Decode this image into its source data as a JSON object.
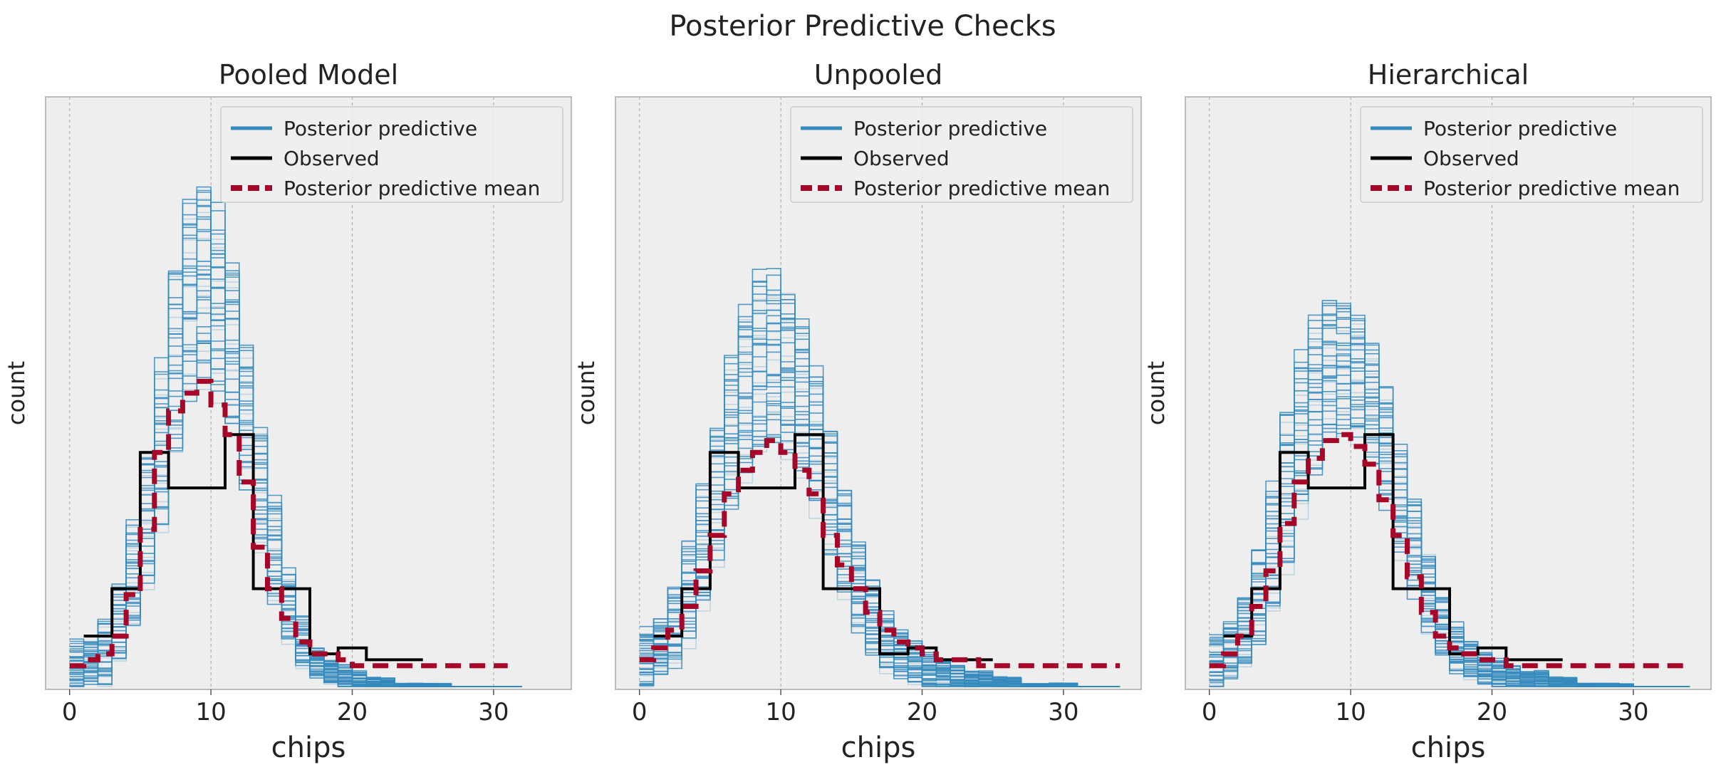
{
  "figure_title": "Posterior Predictive Checks",
  "legend_labels": [
    "Posterior predictive",
    "Observed",
    "Posterior predictive mean"
  ],
  "colors": {
    "posterior_predictive": "#348abd",
    "observed": "#000000",
    "mean": "#a60628",
    "axes_bg": "#eeeeee",
    "grid": "#b0b0b0"
  },
  "chart_data": [
    {
      "type": "step",
      "title": "Pooled Model",
      "xlabel": "chips",
      "ylabel": "count",
      "xticks": [
        0,
        10,
        20,
        30
      ],
      "xlim": [
        -1.7,
        35.5
      ],
      "ylim": [
        0,
        1
      ],
      "grid": "vertical",
      "legend_position": "top-right",
      "series": [
        {
          "name": "Posterior predictive",
          "kind": "band",
          "x": [
            0,
            1,
            2,
            3,
            4,
            5,
            6,
            7,
            8,
            9,
            10,
            11,
            12,
            13,
            14,
            15,
            16,
            17,
            18,
            19,
            20,
            21,
            22,
            23,
            24,
            25,
            26,
            27,
            28,
            29,
            30,
            31
          ],
          "low": [
            0.0,
            0.01,
            0.01,
            0.05,
            0.1,
            0.18,
            0.27,
            0.4,
            0.5,
            0.52,
            0.5,
            0.44,
            0.34,
            0.24,
            0.15,
            0.08,
            0.04,
            0.02,
            0.01,
            0.0,
            0.0,
            0.0,
            0.0,
            0.0,
            0.0,
            0.0,
            0.0,
            0.0,
            0.0,
            0.0,
            0.0,
            0.0
          ],
          "high": [
            0.08,
            0.08,
            0.12,
            0.18,
            0.28,
            0.4,
            0.54,
            0.7,
            0.82,
            0.86,
            0.8,
            0.72,
            0.58,
            0.44,
            0.32,
            0.2,
            0.12,
            0.07,
            0.05,
            0.04,
            0.03,
            0.02,
            0.02,
            0.01,
            0.01,
            0.01,
            0.01,
            0.0,
            0.0,
            0.0,
            0.0,
            0.0
          ]
        },
        {
          "name": "Observed",
          "kind": "step",
          "x": [
            1,
            3,
            5,
            7,
            9,
            11,
            13,
            15,
            17,
            19,
            21,
            23
          ],
          "y": [
            0.09,
            0.17,
            0.4,
            0.34,
            0.34,
            0.43,
            0.17,
            0.17,
            0.06,
            0.07,
            0.05,
            0.05
          ]
        },
        {
          "name": "Posterior predictive mean",
          "kind": "step",
          "x": [
            0,
            1,
            2,
            3,
            4,
            5,
            6,
            7,
            8,
            9,
            10,
            11,
            12,
            13,
            14,
            15,
            16,
            17,
            18,
            19,
            20,
            21,
            22,
            23,
            24,
            25,
            26,
            27,
            28,
            29,
            30
          ],
          "y": [
            0.04,
            0.05,
            0.06,
            0.09,
            0.16,
            0.27,
            0.4,
            0.47,
            0.5,
            0.52,
            0.48,
            0.43,
            0.35,
            0.24,
            0.17,
            0.12,
            0.08,
            0.06,
            0.06,
            0.05,
            0.04,
            0.04,
            0.04,
            0.04,
            0.04,
            0.04,
            0.04,
            0.04,
            0.04,
            0.04,
            0.04
          ]
        }
      ]
    },
    {
      "type": "step",
      "title": "Unpooled",
      "xlabel": "chips",
      "ylabel": "count",
      "xticks": [
        0,
        10,
        20,
        30
      ],
      "xlim": [
        -1.7,
        35.5
      ],
      "ylim": [
        0,
        1
      ],
      "grid": "vertical",
      "legend_position": "top-right",
      "series": [
        {
          "name": "Posterior predictive",
          "kind": "band",
          "x": [
            0,
            1,
            2,
            3,
            4,
            5,
            6,
            7,
            8,
            9,
            10,
            11,
            12,
            13,
            14,
            15,
            16,
            17,
            18,
            19,
            20,
            21,
            22,
            23,
            24,
            25,
            26,
            27,
            28,
            29,
            30,
            31,
            32,
            33
          ],
          "low": [
            0.0,
            0.02,
            0.04,
            0.08,
            0.14,
            0.22,
            0.3,
            0.36,
            0.4,
            0.42,
            0.4,
            0.36,
            0.3,
            0.23,
            0.16,
            0.1,
            0.06,
            0.03,
            0.02,
            0.01,
            0.0,
            0.0,
            0.0,
            0.0,
            0.0,
            0.0,
            0.0,
            0.0,
            0.0,
            0.0,
            0.0,
            0.0,
            0.0,
            0.0
          ],
          "high": [
            0.1,
            0.12,
            0.17,
            0.25,
            0.34,
            0.45,
            0.56,
            0.64,
            0.7,
            0.7,
            0.68,
            0.62,
            0.54,
            0.44,
            0.34,
            0.25,
            0.18,
            0.13,
            0.1,
            0.08,
            0.06,
            0.05,
            0.04,
            0.03,
            0.03,
            0.02,
            0.02,
            0.01,
            0.01,
            0.01,
            0.01,
            0.0,
            0.0,
            0.0
          ]
        },
        {
          "name": "Observed",
          "kind": "step",
          "x": [
            1,
            3,
            5,
            7,
            9,
            11,
            13,
            15,
            17,
            19,
            21,
            23
          ],
          "y": [
            0.09,
            0.17,
            0.4,
            0.34,
            0.34,
            0.43,
            0.17,
            0.17,
            0.06,
            0.07,
            0.05,
            0.05
          ]
        },
        {
          "name": "Posterior predictive mean",
          "kind": "step",
          "x": [
            0,
            1,
            2,
            3,
            4,
            5,
            6,
            7,
            8,
            9,
            10,
            11,
            12,
            13,
            14,
            15,
            16,
            17,
            18,
            19,
            20,
            21,
            22,
            23,
            24,
            25,
            26,
            27,
            28,
            29,
            30,
            31,
            32,
            33
          ],
          "y": [
            0.05,
            0.07,
            0.1,
            0.14,
            0.2,
            0.26,
            0.33,
            0.37,
            0.4,
            0.42,
            0.4,
            0.37,
            0.33,
            0.26,
            0.21,
            0.17,
            0.13,
            0.1,
            0.08,
            0.07,
            0.06,
            0.05,
            0.05,
            0.05,
            0.04,
            0.04,
            0.04,
            0.04,
            0.04,
            0.04,
            0.04,
            0.04,
            0.04,
            0.04
          ]
        }
      ]
    },
    {
      "type": "step",
      "title": "Hierarchical",
      "xlabel": "chips",
      "ylabel": "count",
      "xticks": [
        0,
        10,
        20,
        30
      ],
      "xlim": [
        -1.7,
        35.5
      ],
      "ylim": [
        0,
        1
      ],
      "grid": "vertical",
      "legend_position": "top-right",
      "series": [
        {
          "name": "Posterior predictive",
          "kind": "band",
          "x": [
            0,
            1,
            2,
            3,
            4,
            5,
            6,
            7,
            8,
            9,
            10,
            11,
            12,
            13,
            14,
            15,
            16,
            17,
            18,
            19,
            20,
            21,
            22,
            23,
            24,
            25,
            26,
            27,
            28,
            29,
            30,
            31,
            32,
            33
          ],
          "low": [
            0.0,
            0.02,
            0.04,
            0.07,
            0.13,
            0.21,
            0.3,
            0.37,
            0.42,
            0.44,
            0.42,
            0.38,
            0.31,
            0.23,
            0.16,
            0.1,
            0.06,
            0.03,
            0.02,
            0.01,
            0.0,
            0.0,
            0.0,
            0.0,
            0.0,
            0.0,
            0.0,
            0.0,
            0.0,
            0.0,
            0.0,
            0.0,
            0.0,
            0.0
          ],
          "high": [
            0.09,
            0.11,
            0.16,
            0.24,
            0.34,
            0.46,
            0.56,
            0.62,
            0.66,
            0.66,
            0.64,
            0.58,
            0.5,
            0.41,
            0.32,
            0.23,
            0.16,
            0.11,
            0.08,
            0.06,
            0.05,
            0.04,
            0.03,
            0.03,
            0.02,
            0.02,
            0.01,
            0.01,
            0.01,
            0.01,
            0.0,
            0.0,
            0.0,
            0.0
          ]
        },
        {
          "name": "Observed",
          "kind": "step",
          "x": [
            1,
            3,
            5,
            7,
            9,
            11,
            13,
            15,
            17,
            19,
            21,
            23
          ],
          "y": [
            0.09,
            0.17,
            0.4,
            0.34,
            0.34,
            0.43,
            0.17,
            0.17,
            0.06,
            0.07,
            0.05,
            0.05
          ]
        },
        {
          "name": "Posterior predictive mean",
          "kind": "step",
          "x": [
            0,
            1,
            2,
            3,
            4,
            5,
            6,
            7,
            8,
            9,
            10,
            11,
            12,
            13,
            14,
            15,
            16,
            17,
            18,
            19,
            20,
            21,
            22,
            23,
            24,
            25,
            26,
            27,
            28,
            29,
            30,
            31,
            32,
            33
          ],
          "y": [
            0.04,
            0.06,
            0.09,
            0.14,
            0.2,
            0.28,
            0.35,
            0.39,
            0.42,
            0.43,
            0.41,
            0.38,
            0.32,
            0.26,
            0.19,
            0.13,
            0.09,
            0.07,
            0.06,
            0.05,
            0.05,
            0.04,
            0.04,
            0.04,
            0.04,
            0.04,
            0.04,
            0.04,
            0.04,
            0.04,
            0.04,
            0.04,
            0.04,
            0.04
          ]
        }
      ]
    }
  ]
}
